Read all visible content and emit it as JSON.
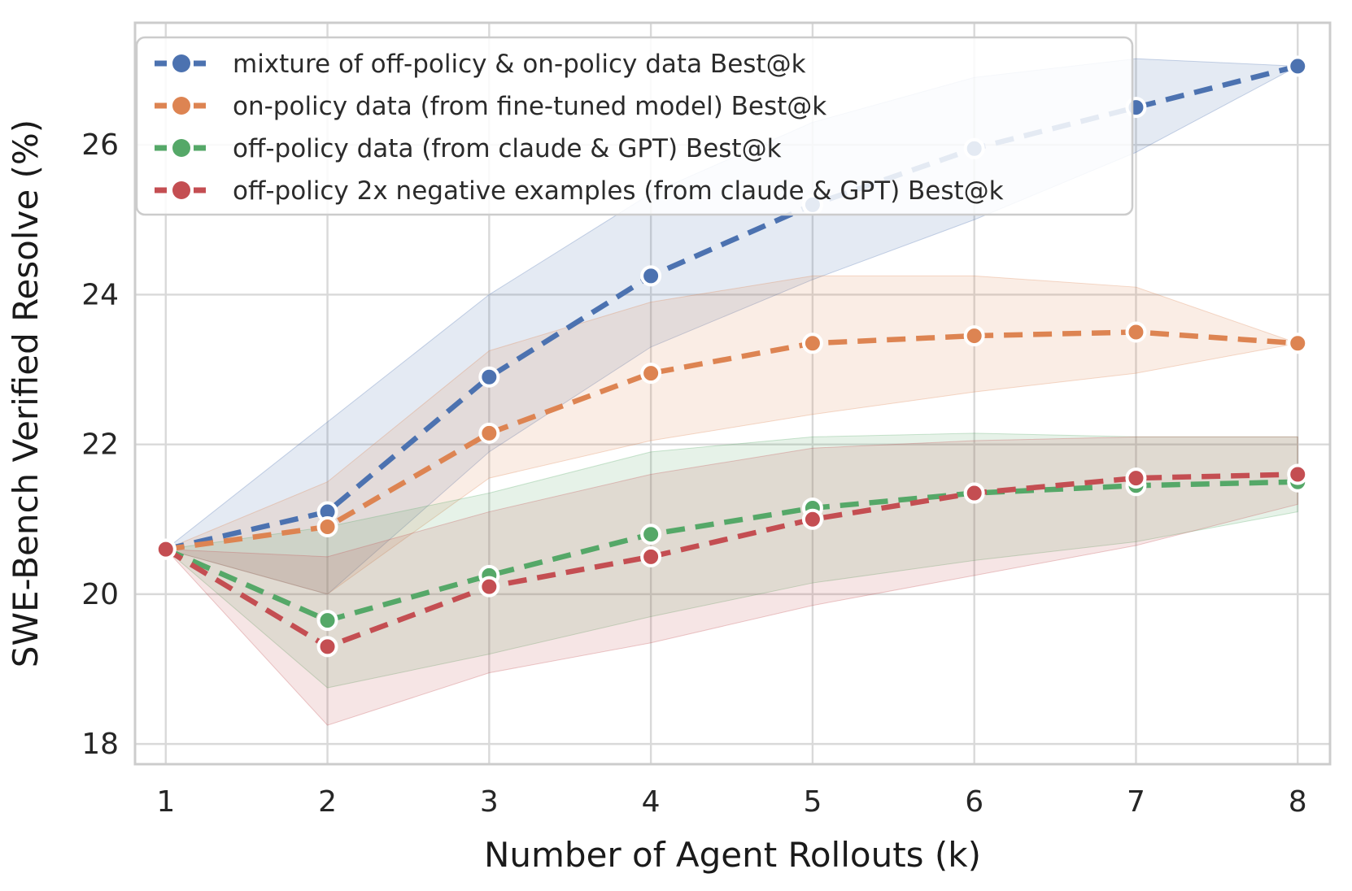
{
  "chart_data": {
    "type": "line",
    "title": "",
    "xlabel": "Number of Agent Rollouts (k)",
    "ylabel": "SWE-Bench Verified Resolve (%)",
    "x": [
      1,
      2,
      3,
      4,
      5,
      6,
      7,
      8
    ],
    "x_ticks": [
      "1",
      "2",
      "3",
      "4",
      "5",
      "6",
      "7",
      "8"
    ],
    "y_ticks": [
      18,
      20,
      22,
      24,
      26
    ],
    "xlim": [
      0.81,
      8.2
    ],
    "ylim": [
      17.73,
      27.63
    ],
    "grid": true,
    "legend_position": "upper left",
    "line_style": "dashed",
    "marker": "circle",
    "series": [
      {
        "name": "mixture of off-policy & on-policy data Best@k",
        "color": "#4C72B0",
        "values": [
          20.6,
          21.1,
          22.9,
          24.25,
          25.2,
          25.95,
          26.5,
          27.05
        ],
        "band_upper": [
          20.6,
          22.3,
          24.0,
          25.35,
          26.3,
          26.9,
          27.15,
          27.05
        ],
        "band_lower": [
          20.6,
          20.0,
          21.9,
          23.3,
          24.2,
          25.0,
          25.9,
          27.05
        ]
      },
      {
        "name": "on-policy data (from fine-tuned model) Best@k",
        "color": "#DD8452",
        "values": [
          20.6,
          20.9,
          22.15,
          22.95,
          23.35,
          23.45,
          23.5,
          23.35
        ],
        "band_upper": [
          20.6,
          21.5,
          23.25,
          23.9,
          24.25,
          24.25,
          24.1,
          23.35
        ],
        "band_lower": [
          20.6,
          20.0,
          21.55,
          22.05,
          22.4,
          22.7,
          22.95,
          23.35
        ]
      },
      {
        "name": "off-policy data (from claude & GPT) Best@k",
        "color": "#55A868",
        "values": [
          20.6,
          19.65,
          20.25,
          20.8,
          21.15,
          21.35,
          21.45,
          21.5
        ],
        "band_upper": [
          20.6,
          20.9,
          21.35,
          21.9,
          22.1,
          22.15,
          22.1,
          22.1
        ],
        "band_lower": [
          20.6,
          18.75,
          19.2,
          19.7,
          20.15,
          20.45,
          20.7,
          21.1
        ]
      },
      {
        "name": "off-policy 2x negative examples (from claude & GPT) Best@k",
        "color": "#C44E52",
        "values": [
          20.6,
          19.3,
          20.1,
          20.5,
          21.0,
          21.35,
          21.55,
          21.6
        ],
        "band_upper": [
          20.6,
          20.5,
          21.1,
          21.6,
          21.95,
          22.05,
          22.1,
          22.1
        ],
        "band_lower": [
          20.6,
          18.25,
          18.95,
          19.35,
          19.85,
          20.25,
          20.65,
          21.2
        ]
      }
    ],
    "style": {
      "grid_color": "#d9d9d9",
      "spine_color": "#cccccc",
      "tick_label_color": "#262626",
      "axis_label_color": "#1a1a1a",
      "legend_text_color": "#2b2b2b",
      "legend_border_color": "#cccccc",
      "band_opacity": 0.15,
      "marker_edge_color": "#ffffff"
    }
  }
}
